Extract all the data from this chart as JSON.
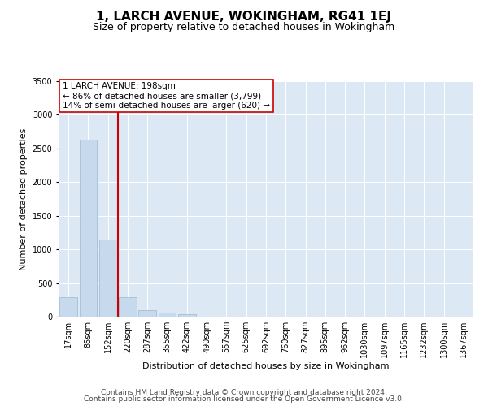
{
  "title": "1, LARCH AVENUE, WOKINGHAM, RG41 1EJ",
  "subtitle": "Size of property relative to detached houses in Wokingham",
  "xlabel": "Distribution of detached houses by size in Wokingham",
  "ylabel": "Number of detached properties",
  "categories": [
    "17sqm",
    "85sqm",
    "152sqm",
    "220sqm",
    "287sqm",
    "355sqm",
    "422sqm",
    "490sqm",
    "557sqm",
    "625sqm",
    "692sqm",
    "760sqm",
    "827sqm",
    "895sqm",
    "962sqm",
    "1030sqm",
    "1097sqm",
    "1165sqm",
    "1232sqm",
    "1300sqm",
    "1367sqm"
  ],
  "values": [
    285,
    2630,
    1150,
    290,
    100,
    55,
    40,
    5,
    0,
    0,
    0,
    0,
    0,
    0,
    0,
    0,
    0,
    0,
    0,
    0,
    0
  ],
  "bar_color": "#c6d9ed",
  "bar_edge_color": "#9ab8d4",
  "vline_color": "#cc0000",
  "vline_x": 2.5,
  "ylim": [
    0,
    3500
  ],
  "yticks": [
    0,
    500,
    1000,
    1500,
    2000,
    2500,
    3000,
    3500
  ],
  "annotation_text": "1 LARCH AVENUE: 198sqm\n← 86% of detached houses are smaller (3,799)\n14% of semi-detached houses are larger (620) →",
  "annotation_box_facecolor": "#ffffff",
  "annotation_box_edgecolor": "#cc0000",
  "footer1": "Contains HM Land Registry data © Crown copyright and database right 2024.",
  "footer2": "Contains public sector information licensed under the Open Government Licence v3.0.",
  "plot_bg_color": "#dce9f5",
  "grid_color": "#ffffff",
  "title_fontsize": 11,
  "subtitle_fontsize": 9,
  "axis_label_fontsize": 8,
  "tick_fontsize": 7,
  "annot_fontsize": 7.5,
  "footer_fontsize": 6.5
}
